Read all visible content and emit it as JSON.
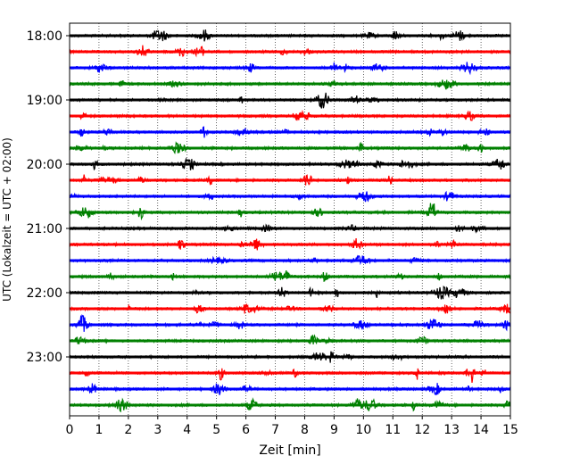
{
  "chart_data": {
    "type": "line",
    "title": "",
    "xlabel": "Zeit  [min]",
    "ylabel": "UTC (Lokalzeit = UTC + 02:00)",
    "xlim": [
      0,
      15
    ],
    "x_ticks": [
      "0",
      "1",
      "2",
      "3",
      "4",
      "5",
      "6",
      "7",
      "8",
      "9",
      "10",
      "11",
      "12",
      "13",
      "14",
      "15"
    ],
    "y_tick_labels": [
      "18:00",
      "19:00",
      "20:00",
      "21:00",
      "22:00",
      "23:00"
    ],
    "grid": "vertical dotted lines at each minute",
    "trace_colors": [
      "#000000",
      "#ff0000",
      "#0000ff",
      "#008000"
    ],
    "trace_start_times": [
      "18:00",
      "18:15",
      "18:30",
      "18:45",
      "19:00",
      "19:15",
      "19:30",
      "19:45",
      "20:00",
      "20:15",
      "20:30",
      "20:45",
      "21:00",
      "21:15",
      "21:30",
      "21:45",
      "22:00",
      "22:15",
      "22:30",
      "22:45",
      "23:00",
      "23:15",
      "23:30",
      "23:45"
    ],
    "trace_duration_min": 15
  }
}
